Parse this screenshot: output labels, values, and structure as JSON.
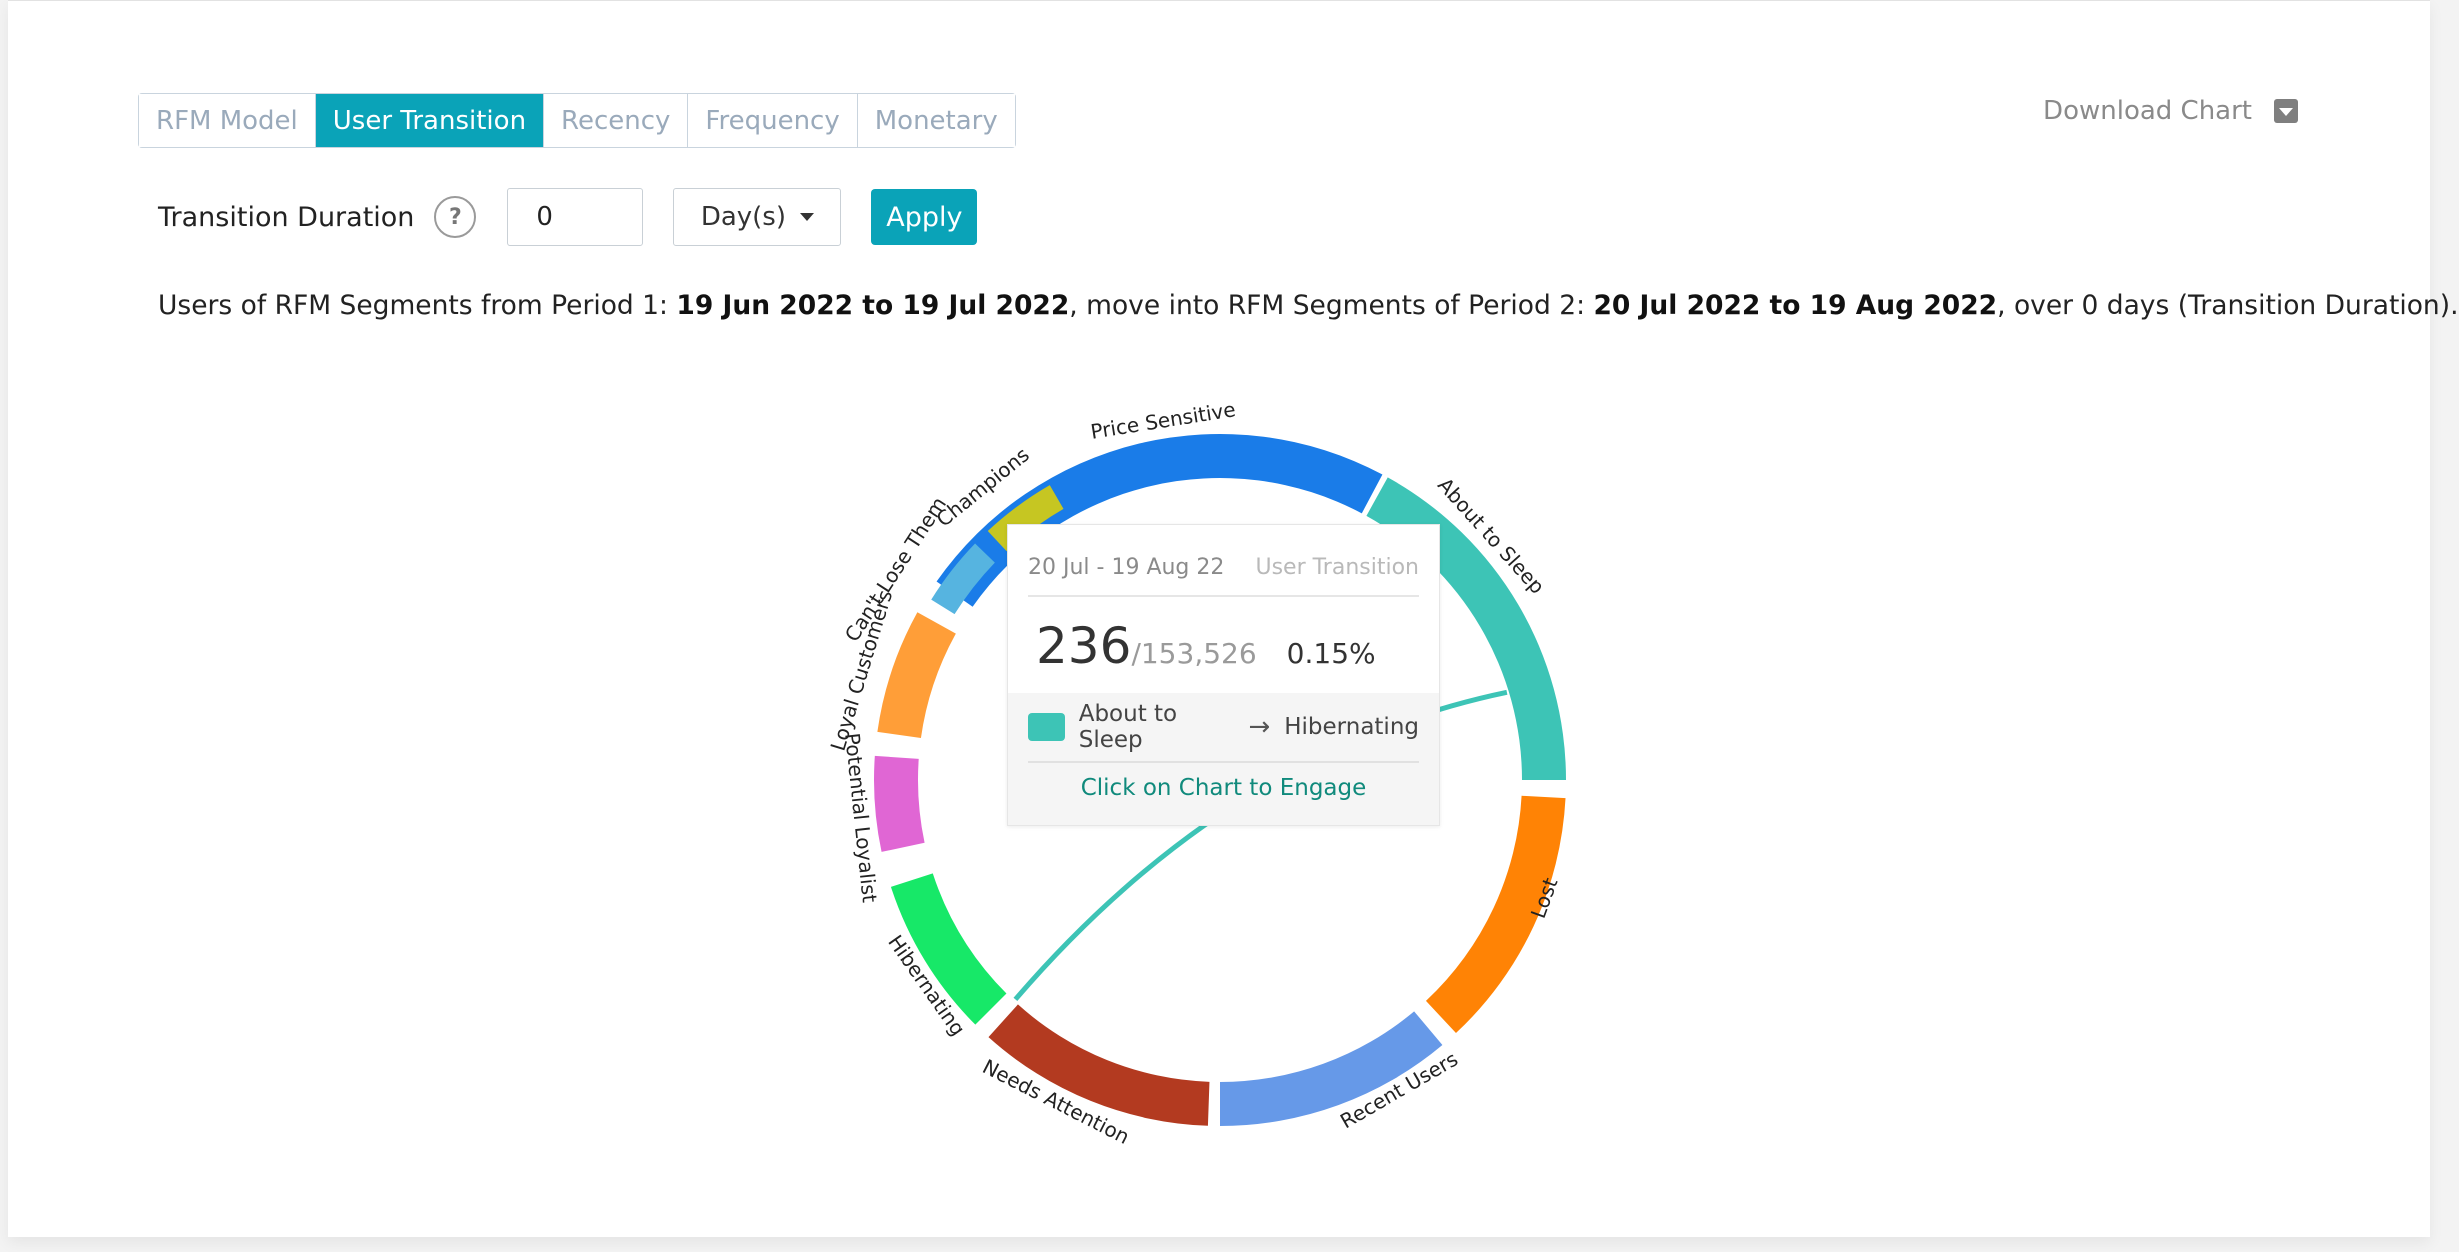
{
  "tabs": [
    {
      "label": "RFM Model",
      "active": false
    },
    {
      "label": "User Transition",
      "active": true
    },
    {
      "label": "Recency",
      "active": false
    },
    {
      "label": "Frequency",
      "active": false
    },
    {
      "label": "Monetary",
      "active": false
    }
  ],
  "download": {
    "label": "Download Chart",
    "icon": "download-dropdown-icon"
  },
  "controls": {
    "duration_label": "Transition Duration",
    "help_glyph": "?",
    "duration_value": "0",
    "unit_value": "Day(s)",
    "apply_label": "Apply"
  },
  "summary": {
    "prefix": "Users of RFM Segments from Period 1: ",
    "period1": "19 Jun 2022 to 19 Jul 2022",
    "middle": ", move into RFM Segments of Period 2: ",
    "period2": "20 Jul 2022 to 19 Aug 2022",
    "suffix": ", over 0 days (Transition Duration)."
  },
  "tooltip": {
    "date_range": "20 Jul - 19 Aug 22",
    "kind": "User Transition",
    "count": "236",
    "total": "/153,526",
    "percent": "0.15%",
    "from": "About to Sleep",
    "to": "Hibernating",
    "from_color": "#3dc4b6",
    "cta": "Click on Chart to Engage"
  },
  "chart_data": {
    "type": "chord",
    "segments": [
      {
        "name": "Price Sensitive",
        "color": "#1a7ce8"
      },
      {
        "name": "About to Sleep",
        "color": "#3dc4b6"
      },
      {
        "name": "Lost",
        "color": "#ff8305"
      },
      {
        "name": "Recent Users",
        "color": "#6699e8"
      },
      {
        "name": "Needs Attention",
        "color": "#b33a20"
      },
      {
        "name": "Hibernating",
        "color": "#17e868"
      },
      {
        "name": "Potential Loyalist",
        "color": "#e066d4"
      },
      {
        "name": "Loyal Customers",
        "color": "#ff9e38"
      },
      {
        "name": "Can't Lose Them",
        "color": "#56b4e0"
      },
      {
        "name": "Champions",
        "color": "#c6c622"
      }
    ],
    "highlighted_flow": {
      "from": "About to Sleep",
      "to": "Hibernating",
      "users": 236,
      "total": 153526,
      "percent": 0.15
    }
  }
}
